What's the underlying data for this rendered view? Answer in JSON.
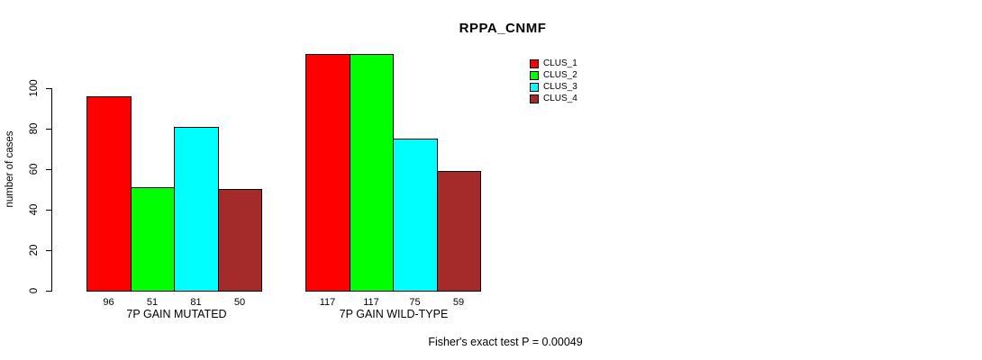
{
  "chart_data": {
    "type": "bar",
    "title": "RPPA_CNMF",
    "ylabel": "number of cases",
    "xlabel": "",
    "categories": [
      "7P GAIN MUTATED",
      "7P GAIN WILD-TYPE"
    ],
    "series": [
      {
        "name": "CLUS_1",
        "color": "#FF0000",
        "values": [
          96,
          117
        ]
      },
      {
        "name": "CLUS_2",
        "color": "#00FF00",
        "values": [
          51,
          117
        ]
      },
      {
        "name": "CLUS_3",
        "color": "#00FFFF",
        "values": [
          81,
          75
        ]
      },
      {
        "name": "CLUS_4",
        "color": "#A52A2A",
        "values": [
          50,
          59
        ]
      }
    ],
    "yticks": [
      0,
      20,
      40,
      60,
      80,
      100
    ],
    "ylim": [
      0,
      117
    ],
    "grid": false,
    "legend_position": "top-right",
    "bar_value_labels_shown": true,
    "annotation": "Fisher's exact test P = 0.00049"
  },
  "colors": {
    "background": "#FFFFFF",
    "axis": "#000000",
    "text": "#000000"
  }
}
